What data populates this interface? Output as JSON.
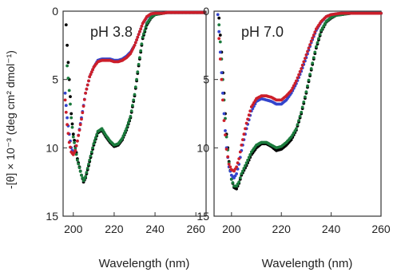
{
  "figure": {
    "ylabel": "-[θ] × 10⁻³ (deg cm² dmol⁻¹)"
  },
  "chart_data": [
    {
      "type": "scatter",
      "title": "pH 3.8",
      "xlabel": "Wavelength (nm)",
      "ylabel": "-[θ] × 10⁻³ (deg cm² dmol⁻¹)",
      "xlim": [
        195,
        265
      ],
      "ylim": [
        0,
        15
      ],
      "y_inverted": true,
      "xticks": [
        "200",
        "220",
        "240",
        "260"
      ],
      "yticks": [
        "0",
        "5",
        "10",
        "15"
      ],
      "grid": false,
      "colors": [
        "#000000",
        "#1a7a3c",
        "#3344cc",
        "#cc1f2a"
      ],
      "series": [
        {
          "color": "#000000",
          "x": [
            196,
            197,
            198,
            199,
            200,
            202,
            204,
            205,
            206,
            208,
            210,
            212,
            214,
            216,
            218,
            220,
            222,
            224,
            226,
            228,
            230,
            232,
            234,
            236,
            238,
            240,
            242,
            244,
            246,
            248,
            250,
            255,
            260,
            264
          ],
          "y": [
            -0.5,
            2.5,
            5.0,
            7.5,
            9.0,
            10.8,
            12.0,
            12.5,
            12.2,
            11.0,
            9.8,
            8.9,
            8.7,
            9.2,
            9.6,
            9.9,
            9.8,
            9.4,
            8.7,
            7.8,
            6.2,
            4.0,
            2.0,
            1.0,
            0.5,
            0.25,
            0.2,
            0.15,
            0.1,
            0.1,
            0.1,
            0.1,
            0.1,
            0.1
          ]
        },
        {
          "color": "#1a7a3c",
          "x": [
            197,
            198,
            199,
            200,
            202,
            204,
            205,
            206,
            208,
            210,
            212,
            214,
            216,
            218,
            220,
            222,
            224,
            226,
            228,
            230,
            232,
            234,
            236,
            238,
            240,
            242,
            244,
            246,
            248,
            250,
            255,
            260,
            264
          ],
          "y": [
            4.0,
            5.8,
            7.8,
            9.2,
            10.9,
            12.0,
            12.4,
            12.1,
            10.9,
            9.7,
            8.8,
            8.6,
            9.1,
            9.5,
            9.8,
            9.7,
            9.3,
            8.6,
            7.7,
            6.1,
            3.9,
            1.9,
            0.9,
            0.45,
            0.25,
            0.2,
            0.15,
            0.1,
            0.1,
            0.1,
            0.1,
            0.1,
            0.1
          ]
        },
        {
          "color": "#3344cc",
          "x": [
            196,
            197,
            198,
            199,
            200,
            201,
            202,
            204,
            206,
            208,
            210,
            212,
            214,
            216,
            218,
            220,
            222,
            224,
            226,
            228,
            230,
            232,
            234,
            236,
            238,
            240,
            242,
            244,
            246,
            248,
            250,
            255,
            260,
            264
          ],
          "y": [
            6.0,
            7.8,
            9.0,
            10.0,
            10.4,
            10.2,
            9.5,
            7.8,
            6.0,
            4.8,
            4.1,
            3.6,
            3.5,
            3.5,
            3.5,
            3.6,
            3.6,
            3.5,
            3.3,
            3.0,
            2.5,
            1.7,
            0.9,
            0.45,
            0.2,
            0.15,
            0.15,
            0.15,
            0.1,
            0.1,
            0.1,
            0.1,
            0.1,
            0.1
          ]
        },
        {
          "color": "#cc1f2a",
          "x": [
            196,
            197,
            198,
            199,
            200,
            201,
            202,
            204,
            206,
            208,
            210,
            212,
            214,
            216,
            218,
            220,
            222,
            224,
            226,
            228,
            230,
            232,
            234,
            236,
            238,
            240,
            242,
            244,
            246,
            248,
            250,
            255,
            260,
            264
          ],
          "y": [
            6.5,
            8.3,
            9.6,
            10.3,
            10.5,
            10.2,
            9.5,
            7.9,
            6.0,
            4.8,
            4.1,
            3.7,
            3.6,
            3.6,
            3.6,
            3.7,
            3.7,
            3.6,
            3.4,
            3.1,
            2.5,
            1.7,
            0.9,
            0.4,
            0.2,
            0.15,
            0.15,
            0.15,
            0.1,
            0.1,
            0.1,
            0.1,
            0.1,
            0.1
          ]
        }
      ]
    },
    {
      "type": "scatter",
      "title": "pH 7.0",
      "xlabel": "Wavelength (nm)",
      "ylabel": "",
      "xlim": [
        193,
        260
      ],
      "ylim": [
        0,
        15
      ],
      "y_inverted": true,
      "xticks": [
        "200",
        "220",
        "240",
        "260"
      ],
      "yticks": [
        "0",
        "5",
        "10",
        "15"
      ],
      "grid": false,
      "colors": [
        "#000000",
        "#1a7a3c",
        "#3344cc",
        "#cc1f2a"
      ],
      "series": [
        {
          "color": "#000000",
          "x": [
            194,
            195,
            196,
            197,
            198,
            199,
            200,
            201,
            202,
            203,
            204,
            206,
            208,
            210,
            212,
            214,
            216,
            218,
            220,
            222,
            224,
            226,
            228,
            230,
            232,
            234,
            236,
            238,
            240,
            242,
            244,
            246,
            248,
            250,
            255,
            260
          ],
          "y": [
            -2.0,
            0.5,
            3.0,
            6.0,
            9.0,
            11.0,
            12.3,
            12.9,
            13.0,
            12.6,
            12.0,
            11.3,
            10.5,
            10.0,
            9.7,
            9.7,
            9.9,
            10.2,
            10.1,
            9.8,
            9.4,
            8.7,
            7.5,
            6.0,
            4.3,
            2.7,
            1.5,
            0.8,
            0.5,
            0.3,
            0.25,
            0.2,
            0.15,
            0.15,
            0.15,
            0.15
          ]
        },
        {
          "color": "#1a7a3c",
          "x": [
            195,
            196,
            197,
            198,
            199,
            200,
            201,
            202,
            203,
            204,
            206,
            208,
            210,
            212,
            214,
            216,
            218,
            220,
            222,
            224,
            226,
            228,
            230,
            232,
            234,
            236,
            238,
            240,
            242,
            244,
            246,
            248,
            250,
            255,
            260
          ],
          "y": [
            1.0,
            3.5,
            6.5,
            9.2,
            11.1,
            12.3,
            12.8,
            12.8,
            12.5,
            11.9,
            11.1,
            10.3,
            9.8,
            9.6,
            9.6,
            9.8,
            10.0,
            9.9,
            9.6,
            9.2,
            8.6,
            7.4,
            5.9,
            4.2,
            2.6,
            1.4,
            0.75,
            0.45,
            0.3,
            0.25,
            0.2,
            0.15,
            0.15,
            0.15,
            0.15
          ]
        },
        {
          "color": "#3344cc",
          "x": [
            194,
            195,
            196,
            197,
            198,
            199,
            200,
            201,
            202,
            203,
            204,
            206,
            208,
            210,
            212,
            214,
            216,
            218,
            220,
            222,
            224,
            226,
            228,
            230,
            232,
            234,
            236,
            238,
            240,
            242,
            244,
            246,
            248,
            250,
            255,
            260
          ],
          "y": [
            -1.0,
            1.5,
            4.5,
            7.5,
            10.0,
            11.4,
            12.0,
            12.2,
            11.9,
            11.2,
            10.2,
            8.6,
            7.3,
            6.6,
            6.4,
            6.5,
            6.6,
            6.8,
            6.8,
            6.5,
            6.0,
            5.3,
            4.4,
            3.4,
            2.3,
            1.4,
            0.8,
            0.4,
            0.25,
            0.2,
            0.15,
            0.15,
            0.15,
            0.15,
            0.15,
            0.15
          ]
        },
        {
          "color": "#cc1f2a",
          "x": [
            195,
            196,
            197,
            198,
            199,
            200,
            201,
            202,
            203,
            204,
            206,
            208,
            210,
            212,
            214,
            216,
            218,
            220,
            222,
            224,
            226,
            228,
            230,
            232,
            234,
            236,
            238,
            240,
            242,
            244,
            246,
            248,
            250,
            255,
            260
          ],
          "y": [
            2.0,
            5.0,
            8.0,
            10.1,
            11.2,
            11.6,
            11.7,
            11.4,
            10.8,
            9.8,
            8.2,
            7.0,
            6.4,
            6.2,
            6.2,
            6.3,
            6.5,
            6.5,
            6.2,
            5.8,
            5.1,
            4.2,
            3.2,
            2.2,
            1.3,
            0.75,
            0.4,
            0.25,
            0.2,
            0.15,
            0.15,
            0.15,
            0.15,
            0.15,
            0.15
          ]
        }
      ]
    }
  ]
}
